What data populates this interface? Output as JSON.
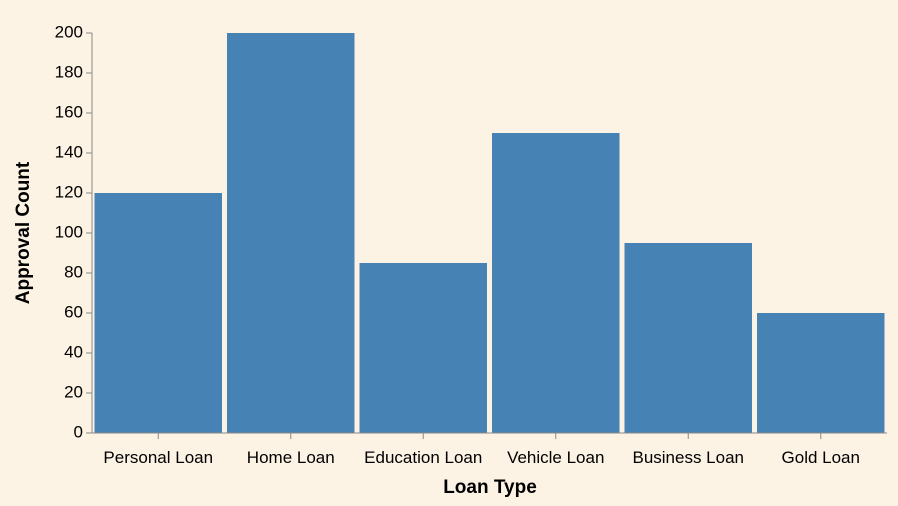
{
  "colors": {
    "background": "#fdf3e5",
    "bar": "#4682b4",
    "axis": "#888888"
  },
  "chart_data": {
    "type": "bar",
    "title": "",
    "xlabel": "Loan Type",
    "ylabel": "Approval Count",
    "categories": [
      "Personal Loan",
      "Home Loan",
      "Education Loan",
      "Vehicle Loan",
      "Business Loan",
      "Gold Loan"
    ],
    "values": [
      120,
      200,
      85,
      150,
      95,
      60
    ],
    "ylim": [
      0,
      200
    ],
    "yticks": [
      0,
      20,
      40,
      60,
      80,
      100,
      120,
      140,
      160,
      180,
      200
    ],
    "grid": false,
    "legend": "none"
  }
}
